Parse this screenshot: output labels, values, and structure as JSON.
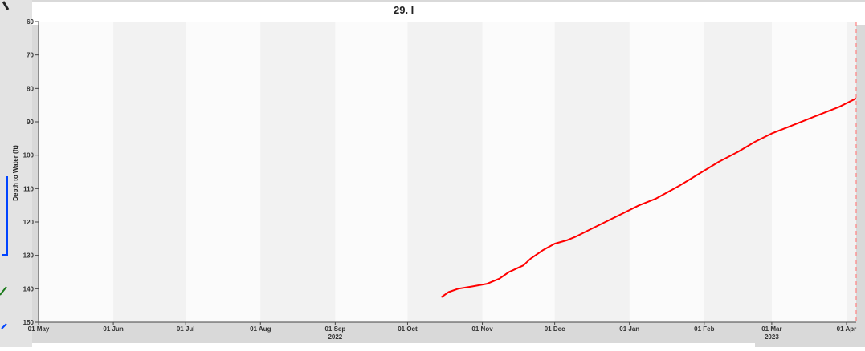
{
  "chart_data": {
    "type": "line",
    "title": "29. I",
    "ylabel": "Depth to Water (ft)",
    "xlabel": "",
    "ylim": [
      60,
      150
    ],
    "y_inverted": false,
    "yticks": [
      60,
      70,
      80,
      90,
      100,
      110,
      120,
      130,
      140,
      150
    ],
    "xticks": [
      {
        "date": "2022-05-01",
        "label": "01 May",
        "sub": ""
      },
      {
        "date": "2022-06-01",
        "label": "01 Jun",
        "sub": ""
      },
      {
        "date": "2022-07-01",
        "label": "01 Jul",
        "sub": ""
      },
      {
        "date": "2022-08-01",
        "label": "01 Aug",
        "sub": ""
      },
      {
        "date": "2022-09-01",
        "label": "01 Sep",
        "sub": "2022"
      },
      {
        "date": "2022-10-01",
        "label": "01 Oct",
        "sub": ""
      },
      {
        "date": "2022-11-01",
        "label": "01 Nov",
        "sub": ""
      },
      {
        "date": "2022-12-01",
        "label": "01 Dec",
        "sub": ""
      },
      {
        "date": "2023-01-01",
        "label": "01 Jan",
        "sub": ""
      },
      {
        "date": "2023-02-01",
        "label": "01 Feb",
        "sub": ""
      },
      {
        "date": "2023-03-01",
        "label": "01 Mar",
        "sub": "2023"
      },
      {
        "date": "2023-04-01",
        "label": "01 Apr",
        "sub": ""
      }
    ],
    "xlim": [
      "2022-05-01",
      "2023-04-05"
    ],
    "series": [
      {
        "color": "#ff0000",
        "points": [
          [
            "2022-10-15",
            142.5
          ],
          [
            "2022-10-18",
            141.0
          ],
          [
            "2022-10-22",
            140.0
          ],
          [
            "2022-10-28",
            139.3
          ],
          [
            "2022-11-03",
            138.5
          ],
          [
            "2022-11-08",
            137.0
          ],
          [
            "2022-11-12",
            135.0
          ],
          [
            "2022-11-18",
            133.0
          ],
          [
            "2022-11-21",
            131.0
          ],
          [
            "2022-11-26",
            128.5
          ],
          [
            "2022-12-01",
            126.5
          ],
          [
            "2022-12-06",
            125.5
          ],
          [
            "2022-12-10",
            124.3
          ],
          [
            "2022-12-15",
            122.5
          ],
          [
            "2022-12-22",
            120.0
          ],
          [
            "2022-12-29",
            117.5
          ],
          [
            "2023-01-05",
            115.0
          ],
          [
            "2023-01-12",
            113.0
          ],
          [
            "2023-01-17",
            111.0
          ],
          [
            "2023-01-22",
            109.0
          ],
          [
            "2023-01-30",
            105.5
          ],
          [
            "2023-02-07",
            102.0
          ],
          [
            "2023-02-15",
            99.0
          ],
          [
            "2023-02-22",
            96.0
          ],
          [
            "2023-03-01",
            93.5
          ],
          [
            "2023-03-08",
            91.5
          ],
          [
            "2023-03-15",
            89.5
          ],
          [
            "2023-03-22",
            87.5
          ],
          [
            "2023-03-29",
            85.5
          ],
          [
            "2023-04-05",
            83.0
          ]
        ]
      }
    ],
    "marker_line": {
      "date": "2023-04-05",
      "color": "#ff8080",
      "style": "dashed"
    },
    "grid": "alternating-month-bands"
  }
}
